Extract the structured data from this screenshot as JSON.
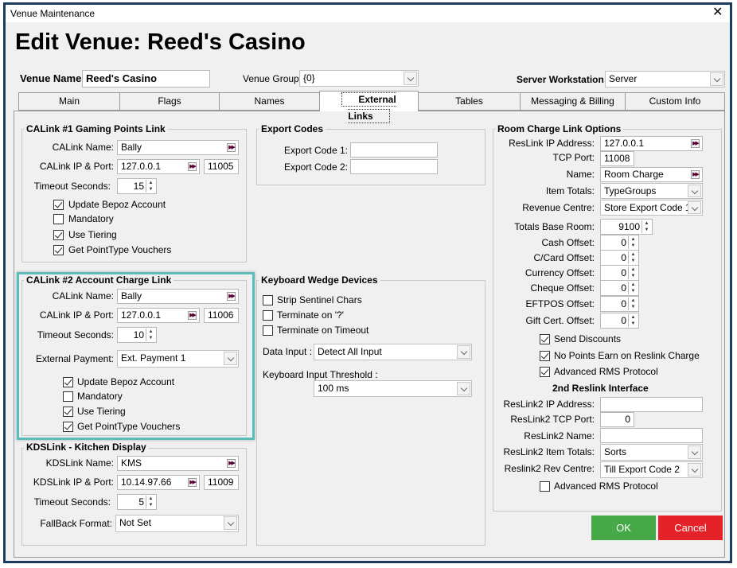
{
  "window": {
    "title": "Venue Maintenance",
    "close_icon": "close-icon"
  },
  "header": {
    "title": "Edit Venue: Reed's Casino",
    "venue_name_label": "Venue Name:",
    "venue_name": "Reed's Casino",
    "venue_group_label": "Venue Group:",
    "venue_group": "{0}",
    "server_ws_label": "Server Workstation:",
    "server_ws": "Server"
  },
  "tabs": {
    "items": [
      "Main",
      "Flags",
      "Names",
      "External Links",
      "Tables",
      "Messaging & Billing",
      "Custom Info"
    ],
    "active": "External Links"
  },
  "calink1": {
    "title": "CALink #1 Gaming Points Link",
    "name_label": "CALink Name:",
    "name": "Bally",
    "ip_label": "CALink IP & Port:",
    "ip": "127.0.0.1",
    "port": "11005",
    "timeout_label": "Timeout Seconds:",
    "timeout": "15",
    "checkboxes": [
      {
        "label": "Update Bepoz Account",
        "checked": true
      },
      {
        "label": "Mandatory",
        "checked": false
      },
      {
        "label": "Use Tiering",
        "checked": true
      },
      {
        "label": "Get PointType Vouchers",
        "checked": true
      }
    ]
  },
  "calink2": {
    "title": "CALink #2 Account Charge Link",
    "name_label": "CALink Name:",
    "name": "Bally",
    "ip_label": "CALink IP & Port:",
    "ip": "127.0.0.1",
    "port": "11006",
    "timeout_label": "Timeout Seconds:",
    "timeout": "10",
    "ext_payment_label": "External Payment:",
    "ext_payment": "Ext. Payment 1",
    "checkboxes": [
      {
        "label": "Update Bepoz Account",
        "checked": true
      },
      {
        "label": "Mandatory",
        "checked": false
      },
      {
        "label": "Use Tiering",
        "checked": true
      },
      {
        "label": "Get PointType Vouchers",
        "checked": true
      }
    ]
  },
  "kds": {
    "title": "KDSLink - Kitchen Display",
    "name_label": "KDSLink Name:",
    "name": "KMS",
    "ip_label": "KDSLink IP & Port:",
    "ip": "10.14.97.66",
    "port": "11009",
    "timeout_label": "Timeout Seconds:",
    "timeout": "5",
    "fallback_label": "FallBack Format:",
    "fallback": "Not Set"
  },
  "export_codes": {
    "title": "Export Codes",
    "code1_label": "Export Code 1:",
    "code1": "",
    "code2_label": "Export Code 2:",
    "code2": ""
  },
  "keyboard_wedge": {
    "title": "Keyboard Wedge Devices",
    "checkboxes": [
      {
        "label": "Strip Sentinel Chars",
        "checked": false
      },
      {
        "label": "Terminate on '?'",
        "checked": false
      },
      {
        "label": "Terminate on Timeout",
        "checked": false
      }
    ],
    "data_input_label": "Data Input :",
    "data_input": "Detect All Input",
    "threshold_label": "Keyboard Input Threshold :",
    "threshold": "100 ms"
  },
  "room_charge": {
    "title": "Room Charge Link Options",
    "ip_label": "ResLink  IP Address:",
    "ip": "127.0.0.1",
    "port_label": "TCP Port:",
    "port": "11008",
    "name_label": "Name:",
    "name": "Room Charge",
    "item_totals_label": "Item Totals:",
    "item_totals": "TypeGroups",
    "revenue_label": "Revenue Centre:",
    "revenue": "Store Export Code 1",
    "base_room_label": "Totals Base Room:",
    "base_room": "9100",
    "offsets": [
      {
        "label": "Cash Offset:",
        "value": "0"
      },
      {
        "label": "C/Card Offset:",
        "value": "0"
      },
      {
        "label": "Currency Offset:",
        "value": "0"
      },
      {
        "label": "Cheque Offset:",
        "value": "0"
      },
      {
        "label": "EFTPOS Offset:",
        "value": "0"
      },
      {
        "label": "Gift Cert. Offset:",
        "value": "0"
      }
    ],
    "checkboxes": [
      {
        "label": "Send Discounts",
        "checked": true
      },
      {
        "label": "No Points Earn on Reslink Charge",
        "checked": true
      },
      {
        "label": "Advanced RMS Protocol",
        "checked": true
      }
    ],
    "second_title": "2nd Reslink Interface",
    "ip2_label": "ResLink2  IP Address:",
    "ip2": "",
    "port2_label": "ResLink2 TCP Port:",
    "port2": "0",
    "name2_label": "ResLink2 Name:",
    "name2": "",
    "item_totals2_label": "ResLink2 Item Totals:",
    "item_totals2": "Sorts",
    "rev2_label": "Reslink2 Rev Centre:",
    "rev2": "Till Export Code 2",
    "adv2": {
      "label": "Advanced RMS Protocol",
      "checked": false
    }
  },
  "buttons": {
    "ok": "OK",
    "cancel": "Cancel"
  },
  "colors": {
    "ok": "#45a948",
    "cancel": "#e52228",
    "highlight": "#5bbcbc",
    "frame": "#1f3a5f"
  }
}
